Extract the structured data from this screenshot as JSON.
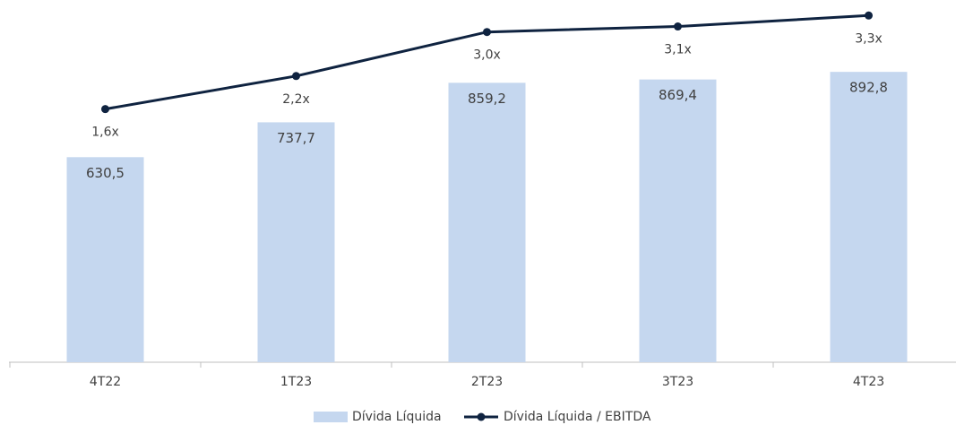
{
  "chart_data": {
    "type": "bar_line",
    "categories": [
      "4T22",
      "1T23",
      "2T23",
      "3T23",
      "4T23"
    ],
    "series": [
      {
        "name": "Dívida Líquida",
        "type": "bar",
        "color": "#c5d7ef",
        "values": [
          630.5,
          737.7,
          859.2,
          869.4,
          892.8
        ],
        "value_labels": [
          "630,5",
          "737,7",
          "859,2",
          "869,4",
          "892,8"
        ]
      },
      {
        "name": "Dívida Líquida / EBITDA",
        "type": "line",
        "axis": "y2",
        "color": "#0f2340",
        "values": [
          1.6,
          2.2,
          3.0,
          3.1,
          3.3
        ],
        "value_labels": [
          "1,6x",
          "2,2x",
          "3,0x",
          "3,1x",
          "3,3x"
        ]
      }
    ],
    "ylim": [
      0,
      1100
    ],
    "y2lim": [
      -3,
      3.5
    ],
    "legend": "bottom"
  }
}
